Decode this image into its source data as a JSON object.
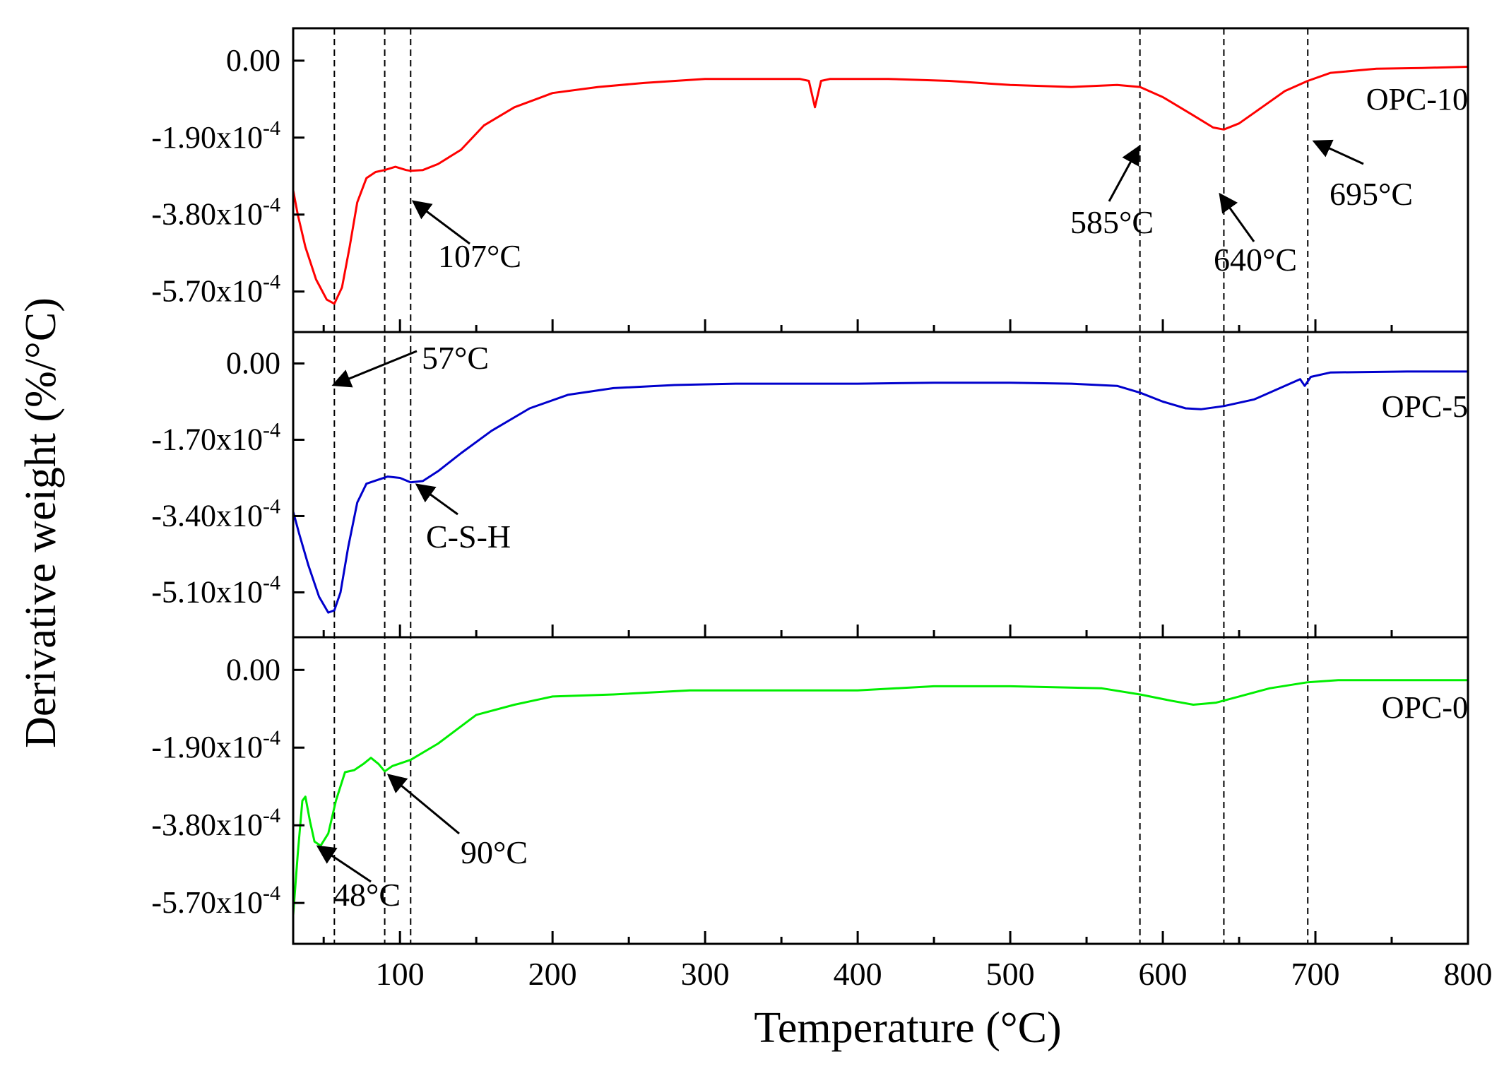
{
  "chart_data": {
    "type": "line",
    "xlabel": "Temperature (°C)",
    "ylabel": "Derivative weight (%/°C)",
    "xlim": [
      30,
      800
    ],
    "xticks": [
      100,
      200,
      300,
      400,
      500,
      600,
      700,
      800
    ],
    "vlines": [
      57,
      90,
      107,
      585,
      640,
      695
    ],
    "panels": [
      {
        "name": "OPC-10",
        "color": "#ff0000",
        "yticks": [
          {
            "value": 0,
            "label": "0.00"
          },
          {
            "value": -0.00019,
            "label": "-1.90x10",
            "exp": "-4"
          },
          {
            "value": -0.00038,
            "label": "-3.80x10",
            "exp": "-4"
          },
          {
            "value": -0.00057,
            "label": "-5.70x10",
            "exp": "-4"
          }
        ],
        "points": [
          [
            30,
            -0.00032
          ],
          [
            33,
            -0.00038
          ],
          [
            38,
            -0.00046
          ],
          [
            45,
            -0.00054
          ],
          [
            52,
            -0.00059
          ],
          [
            57,
            -0.0006
          ],
          [
            62,
            -0.00056
          ],
          [
            67,
            -0.00046
          ],
          [
            72,
            -0.00035
          ],
          [
            78,
            -0.00029
          ],
          [
            84,
            -0.000275
          ],
          [
            90,
            -0.00027
          ],
          [
            97,
            -0.000262
          ],
          [
            104,
            -0.00027
          ],
          [
            107,
            -0.000272
          ],
          [
            115,
            -0.00027
          ],
          [
            125,
            -0.000255
          ],
          [
            140,
            -0.00022
          ],
          [
            155,
            -0.00016
          ],
          [
            175,
            -0.000115
          ],
          [
            200,
            -8e-05
          ],
          [
            230,
            -6.5e-05
          ],
          [
            260,
            -5.5e-05
          ],
          [
            300,
            -4.5e-05
          ],
          [
            340,
            -4.5e-05
          ],
          [
            362,
            -4.5e-05
          ],
          [
            368,
            -5e-05
          ],
          [
            372,
            -0.000115
          ],
          [
            376,
            -5e-05
          ],
          [
            382,
            -4.5e-05
          ],
          [
            420,
            -4.5e-05
          ],
          [
            460,
            -5e-05
          ],
          [
            500,
            -6e-05
          ],
          [
            540,
            -6.5e-05
          ],
          [
            570,
            -6e-05
          ],
          [
            585,
            -6.5e-05
          ],
          [
            600,
            -9e-05
          ],
          [
            620,
            -0.000135
          ],
          [
            633,
            -0.000165
          ],
          [
            640,
            -0.00017
          ],
          [
            650,
            -0.000155
          ],
          [
            665,
            -0.000115
          ],
          [
            680,
            -7.5e-05
          ],
          [
            695,
            -5e-05
          ],
          [
            710,
            -3e-05
          ],
          [
            740,
            -2e-05
          ],
          [
            770,
            -1.8e-05
          ],
          [
            800,
            -1.5e-05
          ]
        ],
        "ymin": -0.00067,
        "ymax": 8e-05
      },
      {
        "name": "OPC-5",
        "color": "#0000cc",
        "yticks": [
          {
            "value": 0,
            "label": "0.00"
          },
          {
            "value": -0.00017,
            "label": "-1.70x10",
            "exp": "-4"
          },
          {
            "value": -0.00034,
            "label": "-3.40x10",
            "exp": "-4"
          },
          {
            "value": -0.00051,
            "label": "-5.10x10",
            "exp": "-4"
          }
        ],
        "points": [
          [
            30,
            -0.00033
          ],
          [
            34,
            -0.00038
          ],
          [
            40,
            -0.00045
          ],
          [
            47,
            -0.00052
          ],
          [
            53,
            -0.000555
          ],
          [
            57,
            -0.00055
          ],
          [
            61,
            -0.00051
          ],
          [
            66,
            -0.00041
          ],
          [
            72,
            -0.00031
          ],
          [
            78,
            -0.000268
          ],
          [
            85,
            -0.00026
          ],
          [
            92,
            -0.000252
          ],
          [
            100,
            -0.000255
          ],
          [
            107,
            -0.000265
          ],
          [
            115,
            -0.000262
          ],
          [
            125,
            -0.00024
          ],
          [
            140,
            -0.0002
          ],
          [
            160,
            -0.00015
          ],
          [
            185,
            -0.0001
          ],
          [
            210,
            -7e-05
          ],
          [
            240,
            -5.5e-05
          ],
          [
            280,
            -4.8e-05
          ],
          [
            320,
            -4.5e-05
          ],
          [
            360,
            -4.5e-05
          ],
          [
            400,
            -4.5e-05
          ],
          [
            450,
            -4.3e-05
          ],
          [
            500,
            -4.3e-05
          ],
          [
            540,
            -4.5e-05
          ],
          [
            570,
            -5e-05
          ],
          [
            585,
            -6.5e-05
          ],
          [
            600,
            -8.5e-05
          ],
          [
            615,
            -0.0001
          ],
          [
            625,
            -0.000102
          ],
          [
            640,
            -9.5e-05
          ],
          [
            660,
            -8e-05
          ],
          [
            680,
            -5e-05
          ],
          [
            690,
            -3.5e-05
          ],
          [
            693,
            -5e-05
          ],
          [
            697,
            -3e-05
          ],
          [
            710,
            -2e-05
          ],
          [
            760,
            -1.8e-05
          ],
          [
            800,
            -1.8e-05
          ]
        ],
        "ymin": -0.00061,
        "ymax": 7e-05
      },
      {
        "name": "OPC-0",
        "color": "#00ee00",
        "yticks": [
          {
            "value": 0,
            "label": "0.00"
          },
          {
            "value": -0.00019,
            "label": "-1.90x10",
            "exp": "-4"
          },
          {
            "value": -0.00038,
            "label": "-3.80x10",
            "exp": "-4"
          },
          {
            "value": -0.00057,
            "label": "-5.70x10",
            "exp": "-4"
          }
        ],
        "points": [
          [
            30,
            -0.0006
          ],
          [
            33,
            -0.00045
          ],
          [
            36,
            -0.00032
          ],
          [
            38,
            -0.00031
          ],
          [
            41,
            -0.00037
          ],
          [
            44,
            -0.00042
          ],
          [
            48,
            -0.00043
          ],
          [
            53,
            -0.0004
          ],
          [
            58,
            -0.00032
          ],
          [
            64,
            -0.00025
          ],
          [
            70,
            -0.000245
          ],
          [
            76,
            -0.00023
          ],
          [
            81,
            -0.000215
          ],
          [
            86,
            -0.00023
          ],
          [
            90,
            -0.000248
          ],
          [
            95,
            -0.000235
          ],
          [
            107,
            -0.00022
          ],
          [
            125,
            -0.00018
          ],
          [
            150,
            -0.00011
          ],
          [
            175,
            -8.5e-05
          ],
          [
            200,
            -6.5e-05
          ],
          [
            240,
            -6e-05
          ],
          [
            290,
            -5e-05
          ],
          [
            340,
            -5e-05
          ],
          [
            400,
            -5e-05
          ],
          [
            450,
            -4e-05
          ],
          [
            500,
            -4e-05
          ],
          [
            560,
            -4.5e-05
          ],
          [
            585,
            -6e-05
          ],
          [
            605,
            -7.5e-05
          ],
          [
            620,
            -8.5e-05
          ],
          [
            635,
            -8e-05
          ],
          [
            650,
            -6.5e-05
          ],
          [
            670,
            -4.5e-05
          ],
          [
            695,
            -3e-05
          ],
          [
            715,
            -2.5e-05
          ],
          [
            760,
            -2.5e-05
          ],
          [
            800,
            -2.5e-05
          ]
        ],
        "ymin": -0.00067,
        "ymax": 8e-05
      }
    ],
    "annotations": [
      {
        "text": "107°C",
        "panel": 0
      },
      {
        "text": "585°C",
        "panel": 0
      },
      {
        "text": "640°C",
        "panel": 0
      },
      {
        "text": "695°C",
        "panel": 0
      },
      {
        "text": "57°C",
        "panel": 1
      },
      {
        "text": "C-S-H",
        "panel": 1
      },
      {
        "text": "90°C",
        "panel": 2
      },
      {
        "text": "48°C",
        "panel": 2
      }
    ]
  }
}
